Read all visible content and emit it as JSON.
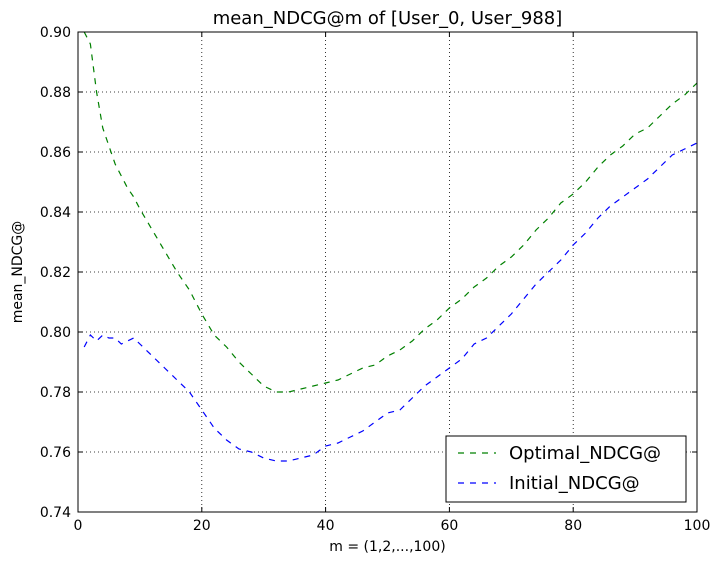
{
  "chart_data": {
    "type": "line",
    "title": "mean_NDCG@m of [User_0, User_988]",
    "xlabel": "m = (1,2,...,100)",
    "ylabel": "mean_NDCG@",
    "xlim": [
      0,
      100
    ],
    "ylim": [
      0.74,
      0.9
    ],
    "x_ticks": [
      "0",
      "20",
      "40",
      "60",
      "80",
      "100"
    ],
    "y_ticks": [
      "0.74",
      "0.76",
      "0.78",
      "0.80",
      "0.82",
      "0.84",
      "0.86",
      "0.88",
      "0.90"
    ],
    "grid": true,
    "legend_position": "lower-right",
    "series": [
      {
        "name": "Optimal_NDCG@",
        "color": "#008000",
        "line_style": "dashed",
        "points": [
          [
            1,
            0.9
          ],
          [
            2,
            0.896
          ],
          [
            3,
            0.88
          ],
          [
            4,
            0.868
          ],
          [
            5,
            0.862
          ],
          [
            6,
            0.856
          ],
          [
            7,
            0.852
          ],
          [
            8,
            0.848
          ],
          [
            9,
            0.845
          ],
          [
            10,
            0.841
          ],
          [
            12,
            0.834
          ],
          [
            14,
            0.827
          ],
          [
            16,
            0.82
          ],
          [
            18,
            0.814
          ],
          [
            20,
            0.806
          ],
          [
            22,
            0.799
          ],
          [
            24,
            0.795
          ],
          [
            26,
            0.79
          ],
          [
            28,
            0.786
          ],
          [
            30,
            0.782
          ],
          [
            32,
            0.78
          ],
          [
            34,
            0.78
          ],
          [
            36,
            0.781
          ],
          [
            38,
            0.782
          ],
          [
            40,
            0.783
          ],
          [
            42,
            0.784
          ],
          [
            44,
            0.786
          ],
          [
            46,
            0.788
          ],
          [
            48,
            0.789
          ],
          [
            50,
            0.792
          ],
          [
            52,
            0.794
          ],
          [
            54,
            0.797
          ],
          [
            56,
            0.801
          ],
          [
            58,
            0.804
          ],
          [
            60,
            0.808
          ],
          [
            62,
            0.811
          ],
          [
            64,
            0.815
          ],
          [
            66,
            0.818
          ],
          [
            68,
            0.822
          ],
          [
            70,
            0.825
          ],
          [
            72,
            0.829
          ],
          [
            74,
            0.834
          ],
          [
            76,
            0.838
          ],
          [
            78,
            0.843
          ],
          [
            80,
            0.846
          ],
          [
            82,
            0.85
          ],
          [
            84,
            0.855
          ],
          [
            86,
            0.859
          ],
          [
            88,
            0.862
          ],
          [
            90,
            0.866
          ],
          [
            92,
            0.868
          ],
          [
            94,
            0.872
          ],
          [
            96,
            0.876
          ],
          [
            98,
            0.879
          ],
          [
            100,
            0.883
          ]
        ]
      },
      {
        "name": "Initial_NDCG@",
        "color": "#0000ff",
        "line_style": "dashed",
        "points": [
          [
            1,
            0.795
          ],
          [
            2,
            0.799
          ],
          [
            3,
            0.797
          ],
          [
            4,
            0.799
          ],
          [
            5,
            0.798
          ],
          [
            6,
            0.798
          ],
          [
            7,
            0.796
          ],
          [
            8,
            0.797
          ],
          [
            9,
            0.798
          ],
          [
            10,
            0.796
          ],
          [
            12,
            0.792
          ],
          [
            14,
            0.788
          ],
          [
            16,
            0.784
          ],
          [
            18,
            0.78
          ],
          [
            20,
            0.774
          ],
          [
            22,
            0.768
          ],
          [
            24,
            0.764
          ],
          [
            26,
            0.761
          ],
          [
            28,
            0.76
          ],
          [
            30,
            0.758
          ],
          [
            32,
            0.757
          ],
          [
            34,
            0.757
          ],
          [
            36,
            0.758
          ],
          [
            38,
            0.759
          ],
          [
            40,
            0.762
          ],
          [
            42,
            0.763
          ],
          [
            44,
            0.765
          ],
          [
            46,
            0.767
          ],
          [
            48,
            0.77
          ],
          [
            50,
            0.773
          ],
          [
            52,
            0.774
          ],
          [
            54,
            0.778
          ],
          [
            56,
            0.782
          ],
          [
            58,
            0.785
          ],
          [
            60,
            0.788
          ],
          [
            62,
            0.791
          ],
          [
            64,
            0.796
          ],
          [
            66,
            0.798
          ],
          [
            68,
            0.802
          ],
          [
            70,
            0.806
          ],
          [
            72,
            0.811
          ],
          [
            74,
            0.816
          ],
          [
            76,
            0.82
          ],
          [
            78,
            0.824
          ],
          [
            80,
            0.829
          ],
          [
            82,
            0.833
          ],
          [
            84,
            0.838
          ],
          [
            86,
            0.842
          ],
          [
            88,
            0.845
          ],
          [
            90,
            0.848
          ],
          [
            92,
            0.851
          ],
          [
            94,
            0.855
          ],
          [
            96,
            0.859
          ],
          [
            98,
            0.861
          ],
          [
            100,
            0.863
          ]
        ]
      }
    ]
  }
}
